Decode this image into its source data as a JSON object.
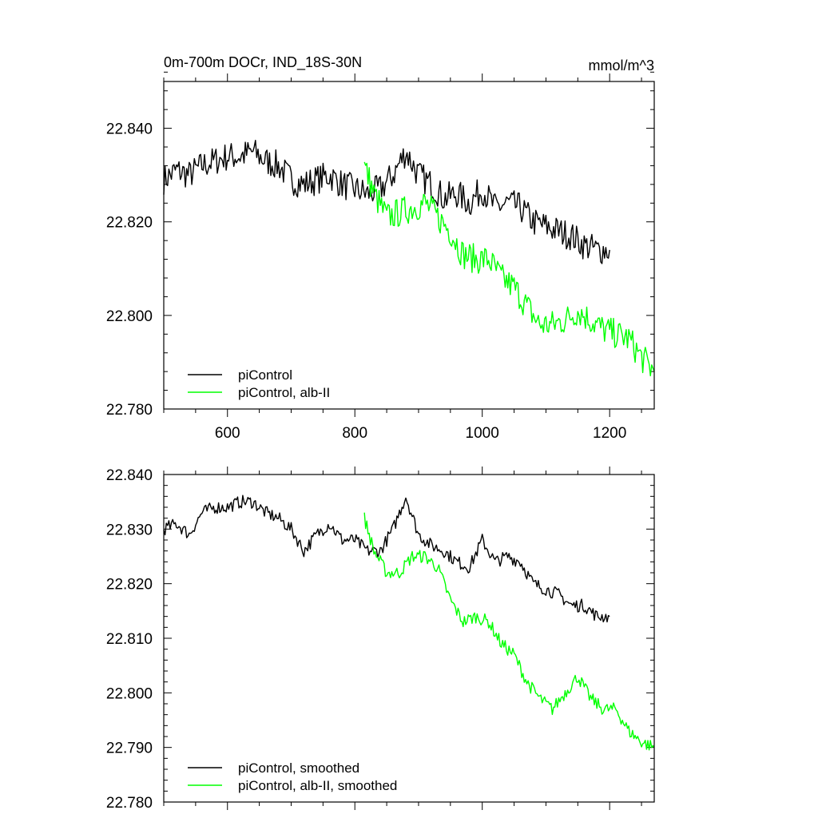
{
  "chart_data": [
    {
      "type": "line",
      "title": "0m-700m DOCr, IND_18S-30N",
      "units": "mmol/m^3",
      "xlim": [
        500,
        1270
      ],
      "ylim": [
        22.78,
        22.85
      ],
      "xticks": [
        600,
        800,
        1000,
        1200
      ],
      "xtick_labels": [
        "600",
        "800",
        "1000",
        "1200"
      ],
      "yticks": [
        22.78,
        22.8,
        22.82,
        22.84
      ],
      "ytick_labels": [
        "22.780",
        "22.800",
        "22.820",
        "22.840"
      ],
      "grid": false,
      "legend_position": "bottom-left",
      "series": [
        {
          "name": "piControl",
          "color": "#000000",
          "x": [
            500,
            520,
            540,
            560,
            580,
            600,
            620,
            640,
            660,
            680,
            700,
            720,
            740,
            760,
            780,
            800,
            820,
            840,
            860,
            880,
            900,
            920,
            940,
            960,
            980,
            1000,
            1020,
            1040,
            1060,
            1080,
            1100,
            1120,
            1140,
            1160,
            1180,
            1200
          ],
          "y": [
            22.829,
            22.831,
            22.83,
            22.832,
            22.833,
            22.834,
            22.834,
            22.835,
            22.833,
            22.832,
            22.829,
            22.828,
            22.829,
            22.83,
            22.828,
            22.827,
            22.826,
            22.827,
            22.83,
            22.835,
            22.83,
            22.828,
            22.825,
            22.826,
            22.824,
            22.827,
            22.823,
            22.824,
            22.823,
            22.82,
            22.819,
            22.818,
            22.817,
            22.815,
            22.814,
            22.814
          ]
        },
        {
          "name": "piControl, alb-II",
          "color": "#00ff00",
          "x": [
            815,
            830,
            850,
            870,
            890,
            910,
            930,
            950,
            970,
            990,
            1010,
            1030,
            1050,
            1070,
            1090,
            1110,
            1130,
            1150,
            1170,
            1190,
            1210,
            1230,
            1250,
            1270
          ],
          "y": [
            22.832,
            22.826,
            22.821,
            22.822,
            22.823,
            22.824,
            22.821,
            22.818,
            22.813,
            22.812,
            22.812,
            22.808,
            22.806,
            22.802,
            22.798,
            22.798,
            22.799,
            22.801,
            22.799,
            22.797,
            22.796,
            22.795,
            22.791,
            22.788
          ]
        }
      ]
    },
    {
      "type": "line",
      "xlim": [
        500,
        1270
      ],
      "ylim": [
        22.78,
        22.84
      ],
      "xticks": [
        600,
        800,
        1000,
        1200
      ],
      "yticks": [
        22.78,
        22.79,
        22.8,
        22.81,
        22.82,
        22.83,
        22.84
      ],
      "ytick_labels": [
        "22.780",
        "22.790",
        "22.800",
        "22.810",
        "22.820",
        "22.830",
        "22.840"
      ],
      "grid": false,
      "legend_position": "bottom-left",
      "series": [
        {
          "name": "piControl, smoothed",
          "color": "#000000",
          "x": [
            500,
            520,
            540,
            560,
            580,
            600,
            620,
            640,
            660,
            680,
            700,
            720,
            740,
            760,
            780,
            800,
            820,
            840,
            860,
            880,
            900,
            920,
            940,
            960,
            980,
            1000,
            1020,
            1040,
            1060,
            1080,
            1100,
            1120,
            1140,
            1160,
            1180,
            1200
          ],
          "y": [
            22.83,
            22.831,
            22.829,
            22.833,
            22.834,
            22.834,
            22.835,
            22.835,
            22.833,
            22.832,
            22.83,
            22.826,
            22.829,
            22.831,
            22.828,
            22.828,
            22.826,
            22.826,
            22.83,
            22.836,
            22.829,
            22.827,
            22.826,
            22.824,
            22.823,
            22.828,
            22.824,
            22.825,
            22.824,
            22.82,
            22.819,
            22.818,
            22.816,
            22.816,
            22.814,
            22.814
          ]
        },
        {
          "name": "piControl, alb-II, smoothed",
          "color": "#00ff00",
          "x": [
            815,
            830,
            850,
            870,
            890,
            910,
            930,
            950,
            970,
            990,
            1010,
            1030,
            1050,
            1070,
            1090,
            1110,
            1130,
            1150,
            1170,
            1190,
            1210,
            1230,
            1250,
            1270
          ],
          "y": [
            22.832,
            22.826,
            22.822,
            22.822,
            22.825,
            22.825,
            22.823,
            22.817,
            22.813,
            22.814,
            22.813,
            22.809,
            22.807,
            22.802,
            22.799,
            22.797,
            22.8,
            22.803,
            22.799,
            22.797,
            22.797,
            22.793,
            22.791,
            22.79
          ]
        }
      ]
    }
  ]
}
